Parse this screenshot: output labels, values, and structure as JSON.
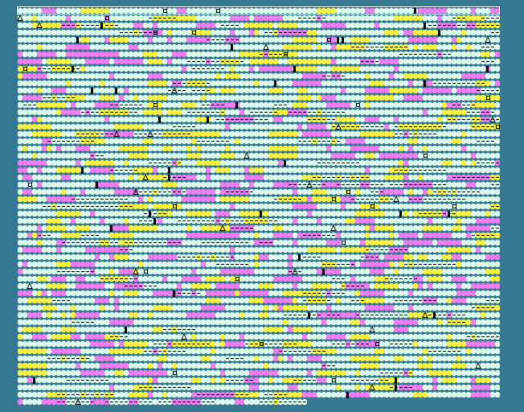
{
  "board": {
    "columns": 100,
    "rows": 55,
    "last_row_cells": 60,
    "selected_row": 1,
    "colors": {
      "background": "#367892",
      "cell": "#dcf8e8",
      "yellow": "#f8f040",
      "magenta": "#f07cf0",
      "mark": "#000000",
      "selection": "#ffffff"
    },
    "symbols": [
      "dash",
      "bar",
      "square",
      "triangle"
    ]
  }
}
